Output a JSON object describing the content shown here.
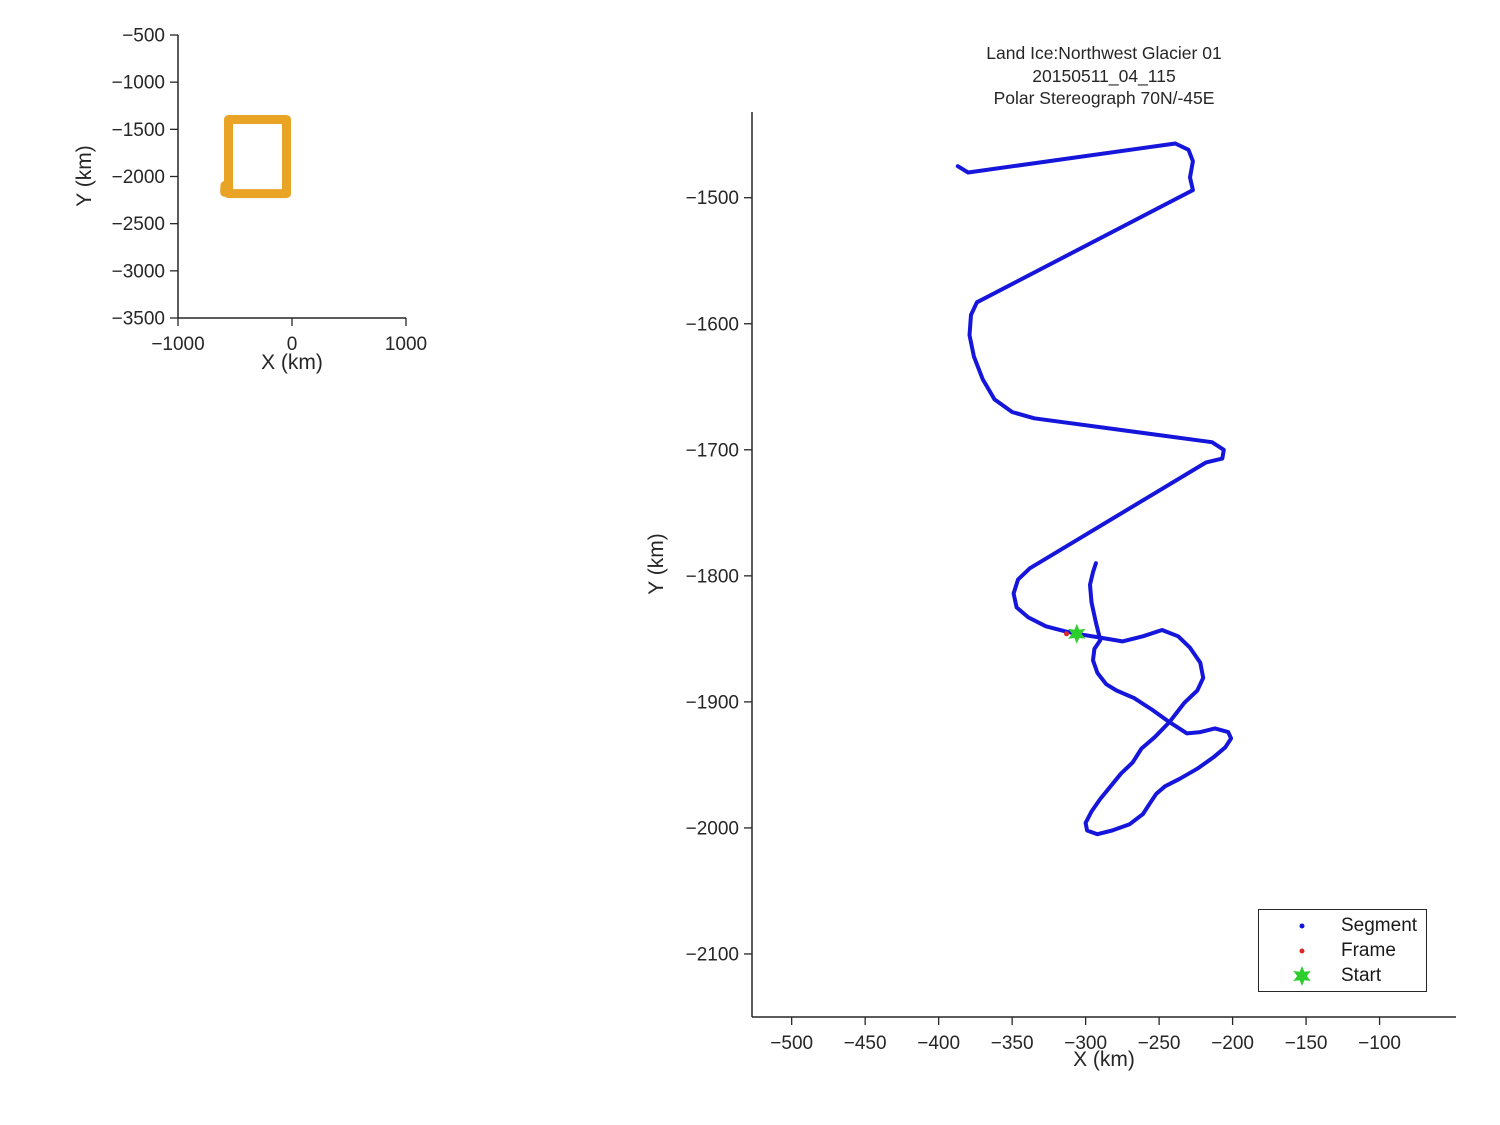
{
  "title": {
    "line1": "Land Ice:Northwest Glacier 01",
    "line2": "20150511_04_115",
    "line3": "Polar Stereograph 70N/-45E"
  },
  "colors": {
    "axis": "#262626",
    "segment_blue": "#1515DC",
    "frame_red": "#DC2A2A",
    "start_green": "#2BCE2B",
    "flight_orange": "#E9A426",
    "background": "#FFFFFF"
  },
  "chart_data": [
    {
      "id": "overview",
      "type": "line",
      "xlabel": "X (km)",
      "ylabel": "Y (km)",
      "xlim": [
        -1000,
        1000
      ],
      "ylim": [
        -3500,
        -500
      ],
      "xticks": [
        -1000,
        0,
        1000
      ],
      "yticks": [
        -500,
        -1000,
        -1500,
        -2000,
        -2500,
        -3000,
        -3500
      ],
      "grid": false,
      "series": [
        {
          "name": "flight-outline",
          "style": "line",
          "color": "#E9A426",
          "width": 9,
          "points_km": [
            [
              -557,
              -1396
            ],
            [
              -48,
              -1396
            ],
            [
              -48,
              -2181
            ],
            [
              -557,
              -2181
            ],
            [
              -557,
              -1396
            ]
          ]
        },
        {
          "name": "flight-outline-notch",
          "style": "line",
          "color": "#E9A426",
          "width": 9,
          "points_km": [
            [
              -589,
              -2095
            ],
            [
              -590,
              -2168
            ]
          ]
        }
      ]
    },
    {
      "id": "main",
      "type": "line",
      "title_lines": [
        "Land Ice:Northwest Glacier 01",
        "20150511_04_115",
        "Polar Stereograph 70N/-45E"
      ],
      "xlabel": "X (km)",
      "ylabel": "Y (km)",
      "xlim": [
        -527,
        -48
      ],
      "ylim": [
        -2150,
        -1432
      ],
      "xticks": [
        -500,
        -450,
        -400,
        -350,
        -300,
        -250,
        -200,
        -150,
        -100
      ],
      "yticks": [
        -1500,
        -1600,
        -1700,
        -1800,
        -1900,
        -2000,
        -2100
      ],
      "grid": false,
      "series": [
        {
          "name": "Segment",
          "style": "line",
          "color": "#1515DC",
          "width": 4,
          "points_km": [
            [
              -387,
              -1475
            ],
            [
              -380,
              -1480
            ],
            [
              -239,
              -1457
            ],
            [
              -230,
              -1462
            ],
            [
              -227,
              -1471
            ],
            [
              -229,
              -1484
            ],
            [
              -227,
              -1494
            ],
            [
              -374,
              -1583
            ],
            [
              -378,
              -1593
            ],
            [
              -379,
              -1609
            ],
            [
              -376,
              -1626
            ],
            [
              -370,
              -1644
            ],
            [
              -362,
              -1660
            ],
            [
              -350,
              -1670
            ],
            [
              -335,
              -1675
            ],
            [
              -214,
              -1694
            ],
            [
              -206,
              -1700
            ],
            [
              -207,
              -1707
            ],
            [
              -218,
              -1710
            ],
            [
              -338,
              -1794
            ],
            [
              -346,
              -1803
            ],
            [
              -349,
              -1814
            ],
            [
              -347,
              -1825
            ],
            [
              -339,
              -1833
            ],
            [
              -327,
              -1840
            ],
            [
              -314,
              -1844
            ],
            [
              -306,
              -1846
            ],
            [
              -290,
              -1849
            ],
            [
              -275,
              -1852
            ],
            [
              -261,
              -1848
            ],
            [
              -248,
              -1843
            ],
            [
              -237,
              -1848
            ],
            [
              -229,
              -1857
            ],
            [
              -222,
              -1869
            ],
            [
              -220,
              -1881
            ],
            [
              -224,
              -1891
            ],
            [
              -233,
              -1901
            ],
            [
              -243,
              -1916
            ],
            [
              -253,
              -1928
            ],
            [
              -262,
              -1937
            ],
            [
              -268,
              -1948
            ],
            [
              -276,
              -1957
            ],
            [
              -283,
              -1967
            ],
            [
              -290,
              -1977
            ],
            [
              -296,
              -1987
            ],
            [
              -300,
              -1996
            ],
            [
              -299,
              -2002
            ],
            [
              -292,
              -2005
            ],
            [
              -282,
              -2002
            ],
            [
              -270,
              -1997
            ],
            [
              -261,
              -1989
            ],
            [
              -256,
              -1980
            ],
            [
              -252,
              -1973
            ],
            [
              -246,
              -1967
            ],
            [
              -236,
              -1961
            ],
            [
              -224,
              -1953
            ],
            [
              -213,
              -1944
            ],
            [
              -205,
              -1936
            ],
            [
              -201,
              -1929
            ],
            [
              -203,
              -1924
            ],
            [
              -212,
              -1921
            ],
            [
              -222,
              -1924
            ],
            [
              -231,
              -1925
            ],
            [
              -243,
              -1916
            ],
            [
              -255,
              -1906
            ],
            [
              -267,
              -1897
            ],
            [
              -279,
              -1891
            ],
            [
              -286,
              -1886
            ],
            [
              -292,
              -1877
            ],
            [
              -295,
              -1867
            ],
            [
              -294,
              -1858
            ],
            [
              -290,
              -1851
            ],
            [
              -293,
              -1837
            ],
            [
              -296,
              -1821
            ],
            [
              -297,
              -1807
            ],
            [
              -295,
              -1797
            ],
            [
              -293,
              -1790
            ]
          ]
        },
        {
          "name": "Frame",
          "style": "dots",
          "color": "#DC2A2A",
          "r": 2.5,
          "points_km": [
            [
              -313,
              -1846
            ]
          ]
        }
      ],
      "markers": [
        {
          "name": "start",
          "shape": "star",
          "color": "#2BCE2B",
          "size": 10,
          "x": -306,
          "y": -1846
        }
      ],
      "legend": {
        "items": [
          {
            "label": "Segment",
            "marker": "dot",
            "color": "#1515DC"
          },
          {
            "label": "Frame",
            "marker": "dot",
            "color": "#DC2A2A"
          },
          {
            "label": "Start",
            "marker": "star",
            "color": "#2BCE2B"
          }
        ]
      }
    }
  ]
}
